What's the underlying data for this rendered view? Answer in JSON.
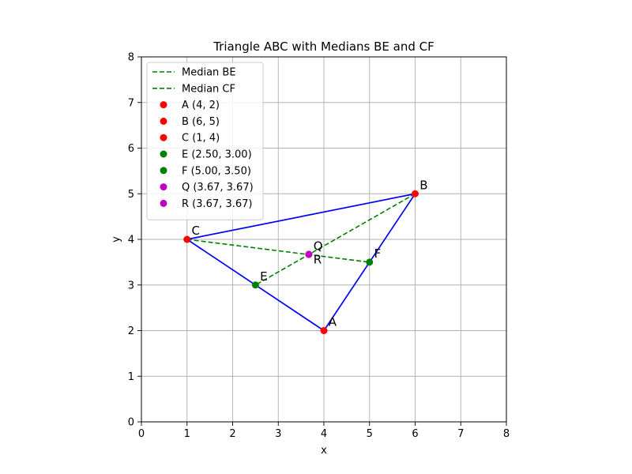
{
  "chart_data": {
    "type": "scatter",
    "title": "Triangle ABC with Medians BE and CF",
    "xlabel": "x",
    "ylabel": "y",
    "xlim": [
      0,
      8
    ],
    "ylim": [
      0,
      8
    ],
    "xticks": [
      "0",
      "1",
      "2",
      "3",
      "4",
      "5",
      "6",
      "7",
      "8"
    ],
    "yticks": [
      "0",
      "1",
      "2",
      "3",
      "4",
      "5",
      "6",
      "7",
      "8"
    ],
    "grid": true,
    "legend_position": "top-left",
    "triangle": {
      "vertices": [
        [
          4,
          2
        ],
        [
          6,
          5
        ],
        [
          1,
          4
        ]
      ],
      "color": "#0000ff"
    },
    "medians": [
      {
        "name": "Median BE",
        "from": [
          6,
          5
        ],
        "to": [
          2.5,
          3.0
        ],
        "color": "#008000"
      },
      {
        "name": "Median CF",
        "from": [
          1,
          4
        ],
        "to": [
          5.0,
          3.5
        ],
        "color": "#008000"
      }
    ],
    "points": [
      {
        "label": "A",
        "legend": "A (4, 2)",
        "x": 4,
        "y": 2,
        "color": "#ff0000",
        "label_dx": 0.1,
        "label_dy": 0.1
      },
      {
        "label": "B",
        "legend": "B (6, 5)",
        "x": 6,
        "y": 5,
        "color": "#ff0000",
        "label_dx": 0.1,
        "label_dy": 0.1
      },
      {
        "label": "C",
        "legend": "C (1, 4)",
        "x": 1,
        "y": 4,
        "color": "#ff0000",
        "label_dx": 0.1,
        "label_dy": 0.1
      },
      {
        "label": "E",
        "legend": "E (2.50, 3.00)",
        "x": 2.5,
        "y": 3.0,
        "color": "#008000",
        "label_dx": 0.1,
        "label_dy": 0.1
      },
      {
        "label": "F",
        "legend": "F (5.00, 3.50)",
        "x": 5.0,
        "y": 3.5,
        "color": "#008000",
        "label_dx": 0.1,
        "label_dy": 0.1
      },
      {
        "label": "Q",
        "legend": "Q (3.67, 3.67)",
        "x": 3.67,
        "y": 3.67,
        "color": "#bf00bf",
        "label_dx": 0.1,
        "label_dy": 0.1
      },
      {
        "label": "R",
        "legend": "R (3.67, 3.67)",
        "x": 3.67,
        "y": 3.67,
        "color": "#bf00bf",
        "label_dx": 0.1,
        "label_dy": -0.2
      }
    ]
  }
}
